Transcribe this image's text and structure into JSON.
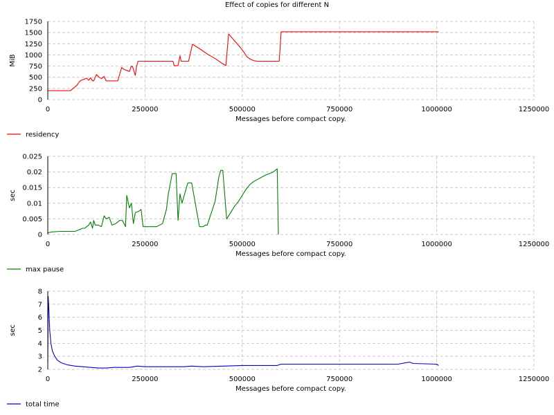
{
  "figure": {
    "title": "Effect of copies for different N"
  },
  "chart_data": [
    {
      "type": "line",
      "xlabel": "Messages before compact copy.",
      "ylabel": "MiB",
      "xlim": [
        0,
        1250000
      ],
      "ylim": [
        0,
        1750
      ],
      "xticks": [
        0,
        250000,
        500000,
        750000,
        1000000,
        1250000
      ],
      "xtick_labels": [
        "0",
        "250000",
        "500000",
        "750000",
        "1000000",
        "1250000"
      ],
      "yticks": [
        0,
        250,
        500,
        750,
        1000,
        1250,
        1500,
        1750
      ],
      "ytick_labels": [
        "0",
        "250",
        "500",
        "750",
        "1000",
        "1250",
        "1500",
        "1750"
      ],
      "grid": true,
      "legend_position": "below-left",
      "series": [
        {
          "name": "residency",
          "color": "#ff0000",
          "x": [
            0,
            58000,
            65000,
            75000,
            82000,
            88000,
            95000,
            100000,
            105000,
            110000,
            115000,
            118000,
            125000,
            132000,
            138000,
            145000,
            150000,
            158000,
            180000,
            190000,
            195000,
            210000,
            215000,
            218000,
            225000,
            228000,
            232000,
            290000,
            322000,
            325000,
            335000,
            340000,
            343000,
            352000,
            362000,
            372000,
            392000,
            412000,
            432000,
            445000,
            458000,
            465000,
            478000,
            492000,
            503000,
            512000,
            520000,
            530000,
            540000,
            585000,
            595000,
            600000,
            700000,
            800000,
            900000,
            1005000
          ],
          "y": [
            200,
            200,
            250,
            320,
            410,
            440,
            460,
            480,
            430,
            490,
            420,
            420,
            560,
            500,
            470,
            520,
            420,
            420,
            420,
            720,
            680,
            630,
            750,
            740,
            540,
            730,
            860,
            860,
            860,
            760,
            760,
            980,
            860,
            860,
            860,
            1240,
            1130,
            1010,
            910,
            830,
            760,
            1470,
            1340,
            1200,
            1080,
            960,
            910,
            870,
            860,
            860,
            860,
            1520,
            1520,
            1520,
            1520,
            1520
          ]
        }
      ]
    },
    {
      "type": "line",
      "xlabel": "Messages before compact copy.",
      "ylabel": "sec",
      "xlim": [
        0,
        1250000
      ],
      "ylim": [
        0,
        0.025
      ],
      "xticks": [
        0,
        250000,
        500000,
        750000,
        1000000,
        1250000
      ],
      "xtick_labels": [
        "0",
        "250000",
        "500000",
        "750000",
        "1000000",
        "1250000"
      ],
      "yticks": [
        0,
        0.005,
        0.01,
        0.015,
        0.02,
        0.025
      ],
      "ytick_labels": [
        "0",
        "0.005",
        "0.01",
        "0.015",
        "0.02",
        "0.025"
      ],
      "grid": true,
      "legend_position": "below-left",
      "series": [
        {
          "name": "max pause",
          "color": "#008000",
          "x": [
            0,
            10000,
            30000,
            50000,
            70000,
            80000,
            90000,
            95000,
            100000,
            105000,
            110000,
            115000,
            118000,
            122000,
            130000,
            138000,
            145000,
            150000,
            158000,
            165000,
            175000,
            185000,
            192000,
            200000,
            203000,
            210000,
            215000,
            220000,
            225000,
            235000,
            240000,
            245000,
            280000,
            295000,
            305000,
            310000,
            320000,
            325000,
            330000,
            335000,
            340000,
            345000,
            360000,
            365000,
            370000,
            390000,
            400000,
            405000,
            410000,
            430000,
            440000,
            445000,
            450000,
            460000,
            470000,
            480000,
            490000,
            500000,
            510000,
            520000,
            530000,
            545000,
            560000,
            570000,
            580000,
            585000,
            590000,
            593000
          ],
          "y": [
            0.0005,
            0.0008,
            0.001,
            0.001,
            0.001,
            0.0015,
            0.002,
            0.002,
            0.0025,
            0.003,
            0.004,
            0.002,
            0.0045,
            0.003,
            0.003,
            0.0025,
            0.006,
            0.005,
            0.0055,
            0.003,
            0.0035,
            0.0045,
            0.0045,
            0.0025,
            0.0125,
            0.0085,
            0.01,
            0.0035,
            0.007,
            0.0075,
            0.008,
            0.0025,
            0.0025,
            0.0035,
            0.008,
            0.013,
            0.0195,
            0.0195,
            0.0195,
            0.0045,
            0.013,
            0.01,
            0.0165,
            0.0165,
            0.0165,
            0.0025,
            0.0025,
            0.003,
            0.003,
            0.0105,
            0.0185,
            0.0205,
            0.0205,
            0.005,
            0.007,
            0.009,
            0.0105,
            0.0125,
            0.0145,
            0.016,
            0.017,
            0.018,
            0.019,
            0.0195,
            0.02,
            0.0205,
            0.021,
            0.0
          ]
        }
      ]
    },
    {
      "type": "line",
      "xlabel": "Messages before compact copy.",
      "ylabel": "sec",
      "xlim": [
        0,
        1250000
      ],
      "ylim": [
        2,
        8
      ],
      "xticks": [
        0,
        250000,
        500000,
        750000,
        1000000,
        1250000
      ],
      "xtick_labels": [
        "0",
        "250000",
        "500000",
        "750000",
        "1000000",
        "1250000"
      ],
      "yticks": [
        2,
        3,
        4,
        5,
        6,
        7,
        8
      ],
      "ytick_labels": [
        "2",
        "3",
        "4",
        "5",
        "6",
        "7",
        "8"
      ],
      "grid": true,
      "legend_position": "below-left",
      "series": [
        {
          "name": "total time",
          "color": "#0000cc",
          "x": [
            0,
            1000,
            3000,
            5000,
            8000,
            12000,
            18000,
            25000,
            35000,
            50000,
            70000,
            90000,
            110000,
            130000,
            150000,
            170000,
            190000,
            210000,
            230000,
            250000,
            300000,
            350000,
            370000,
            400000,
            450000,
            500000,
            550000,
            590000,
            600000,
            700000,
            800000,
            900000,
            930000,
            940000,
            1000000,
            1005000
          ],
          "y": [
            2.5,
            7.6,
            6.5,
            5.0,
            4.0,
            3.4,
            3.0,
            2.7,
            2.5,
            2.35,
            2.25,
            2.2,
            2.15,
            2.1,
            2.1,
            2.15,
            2.15,
            2.15,
            2.25,
            2.2,
            2.2,
            2.2,
            2.25,
            2.2,
            2.25,
            2.3,
            2.3,
            2.3,
            2.4,
            2.4,
            2.4,
            2.4,
            2.55,
            2.45,
            2.4,
            2.3
          ]
        }
      ]
    }
  ]
}
